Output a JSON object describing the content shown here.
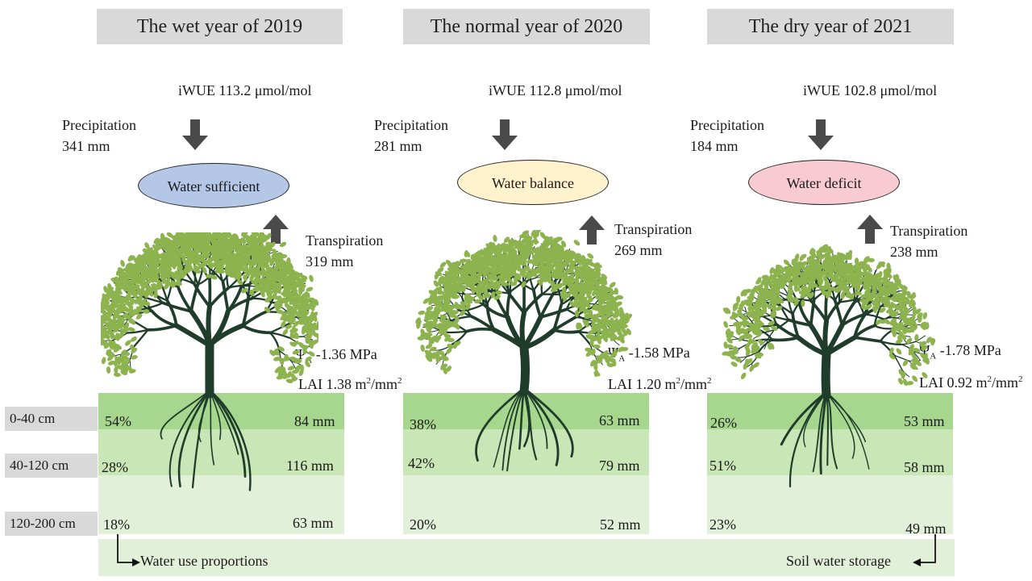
{
  "columns": [
    {
      "title": "The wet year of 2019",
      "iwue": "iWUE 113.2 μmol/mol",
      "precip_label": "Precipitation",
      "precip_value": "341 mm",
      "state": "Water sufficient",
      "state_color": "#b4c7e7",
      "transp_label": "Transpiration",
      "transp_value": "319 mm",
      "psi_value": "-1.36 MPa",
      "lai_prefix": "LAI 1.38 m",
      "lai_mid": "/m",
      "proportions": [
        "54%",
        "28%",
        "18%"
      ],
      "storage": [
        "84 mm",
        "116 mm",
        "63 mm"
      ]
    },
    {
      "title": "The normal year of 2020",
      "iwue": "iWUE 112.8 μmol/mol",
      "precip_label": "Precipitation",
      "precip_value": "281 mm",
      "state": "Water balance",
      "state_color": "#fff2cc",
      "transp_label": "Transpiration",
      "transp_value": "269 mm",
      "psi_value": "-1.58 MPa",
      "lai_prefix": "LAI 1.20 m",
      "lai_mid": "/m",
      "proportions": [
        "38%",
        "42%",
        "20%"
      ],
      "storage": [
        "63 mm",
        "79 mm",
        "52 mm"
      ]
    },
    {
      "title": "The dry year of 2021",
      "iwue": "iWUE 102.8 μmol/mol",
      "precip_label": "Precipitation",
      "precip_value": "184 mm",
      "state": "Water deficit",
      "state_color": "#f8cbd3",
      "transp_label": "Transpiration",
      "transp_value": "238 mm",
      "psi_value": "-1.78 MPa",
      "lai_prefix": "LAI 0.92 m",
      "lai_mid": "/m",
      "proportions": [
        "26%",
        "51%",
        "23%"
      ],
      "storage": [
        "53 mm",
        "58 mm",
        "49 mm"
      ]
    }
  ],
  "psi_symbol": "Ψ",
  "psi_sub": "A",
  "lai_sup": "2",
  "depths": [
    "0-40 cm",
    "40-120 cm",
    "120-200 cm"
  ],
  "legend": {
    "left": "Water use proportions",
    "right": "Soil water storage"
  },
  "colors": {
    "soil_top": "#a7d68e",
    "soil_mid": "#c9e6b6",
    "soil_bottom": "#e2f0d9",
    "leaf": "#8db34f",
    "trunk": "#1f3d2a",
    "arrow": "#4a4a4a"
  }
}
